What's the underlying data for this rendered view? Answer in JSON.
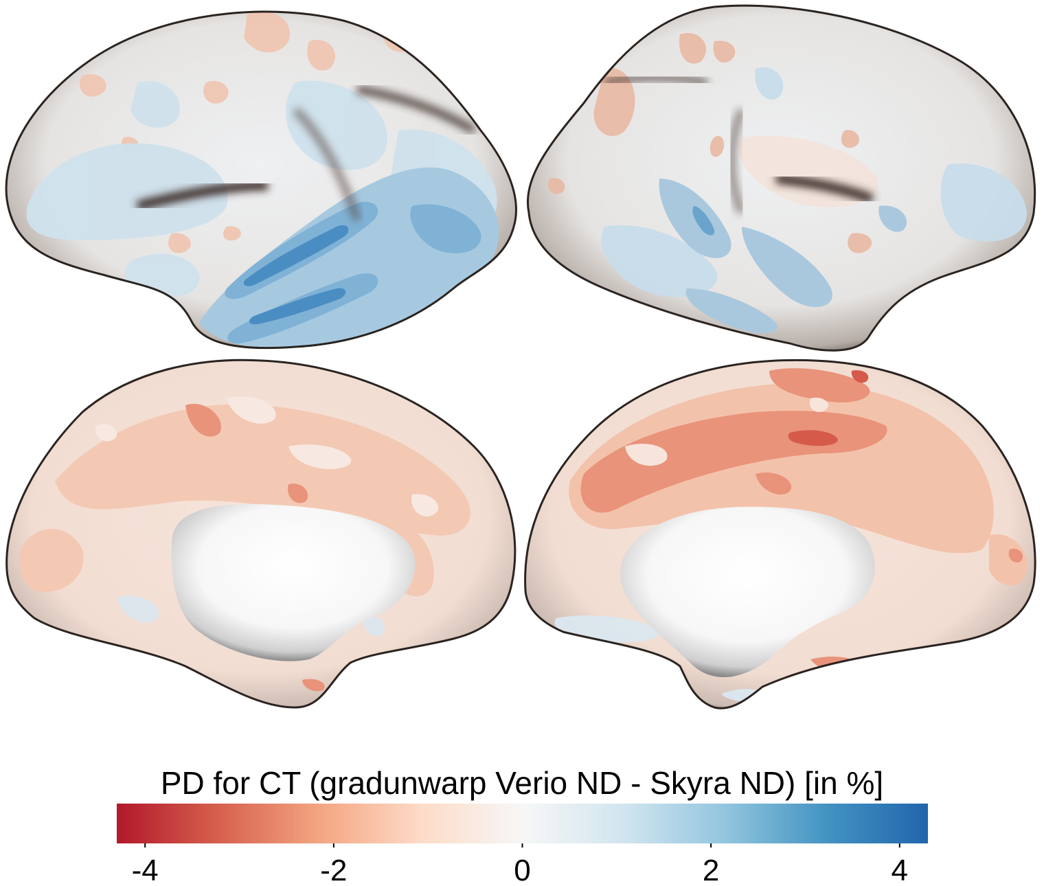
{
  "colorbar": {
    "title": "PD for CT (gradunwarp Verio ND - Skyra ND) [in %]",
    "min": -4.3,
    "max": 4.3,
    "ticks": [
      -4,
      -2,
      0,
      2,
      4
    ],
    "tick_labels": [
      "-4",
      "-2",
      "0",
      "2",
      "4"
    ],
    "colormap": "RdBu",
    "colors": [
      "#b2182b",
      "#d6604d",
      "#f4a582",
      "#fddbc7",
      "#f7f7f7",
      "#d1e5f0",
      "#92c5de",
      "#4393c3",
      "#2166ac"
    ]
  },
  "views": [
    {
      "hemisphere": "left",
      "view": "lateral"
    },
    {
      "hemisphere": "right",
      "view": "lateral"
    },
    {
      "hemisphere": "left",
      "view": "medial"
    },
    {
      "hemisphere": "right",
      "view": "medial"
    }
  ]
}
